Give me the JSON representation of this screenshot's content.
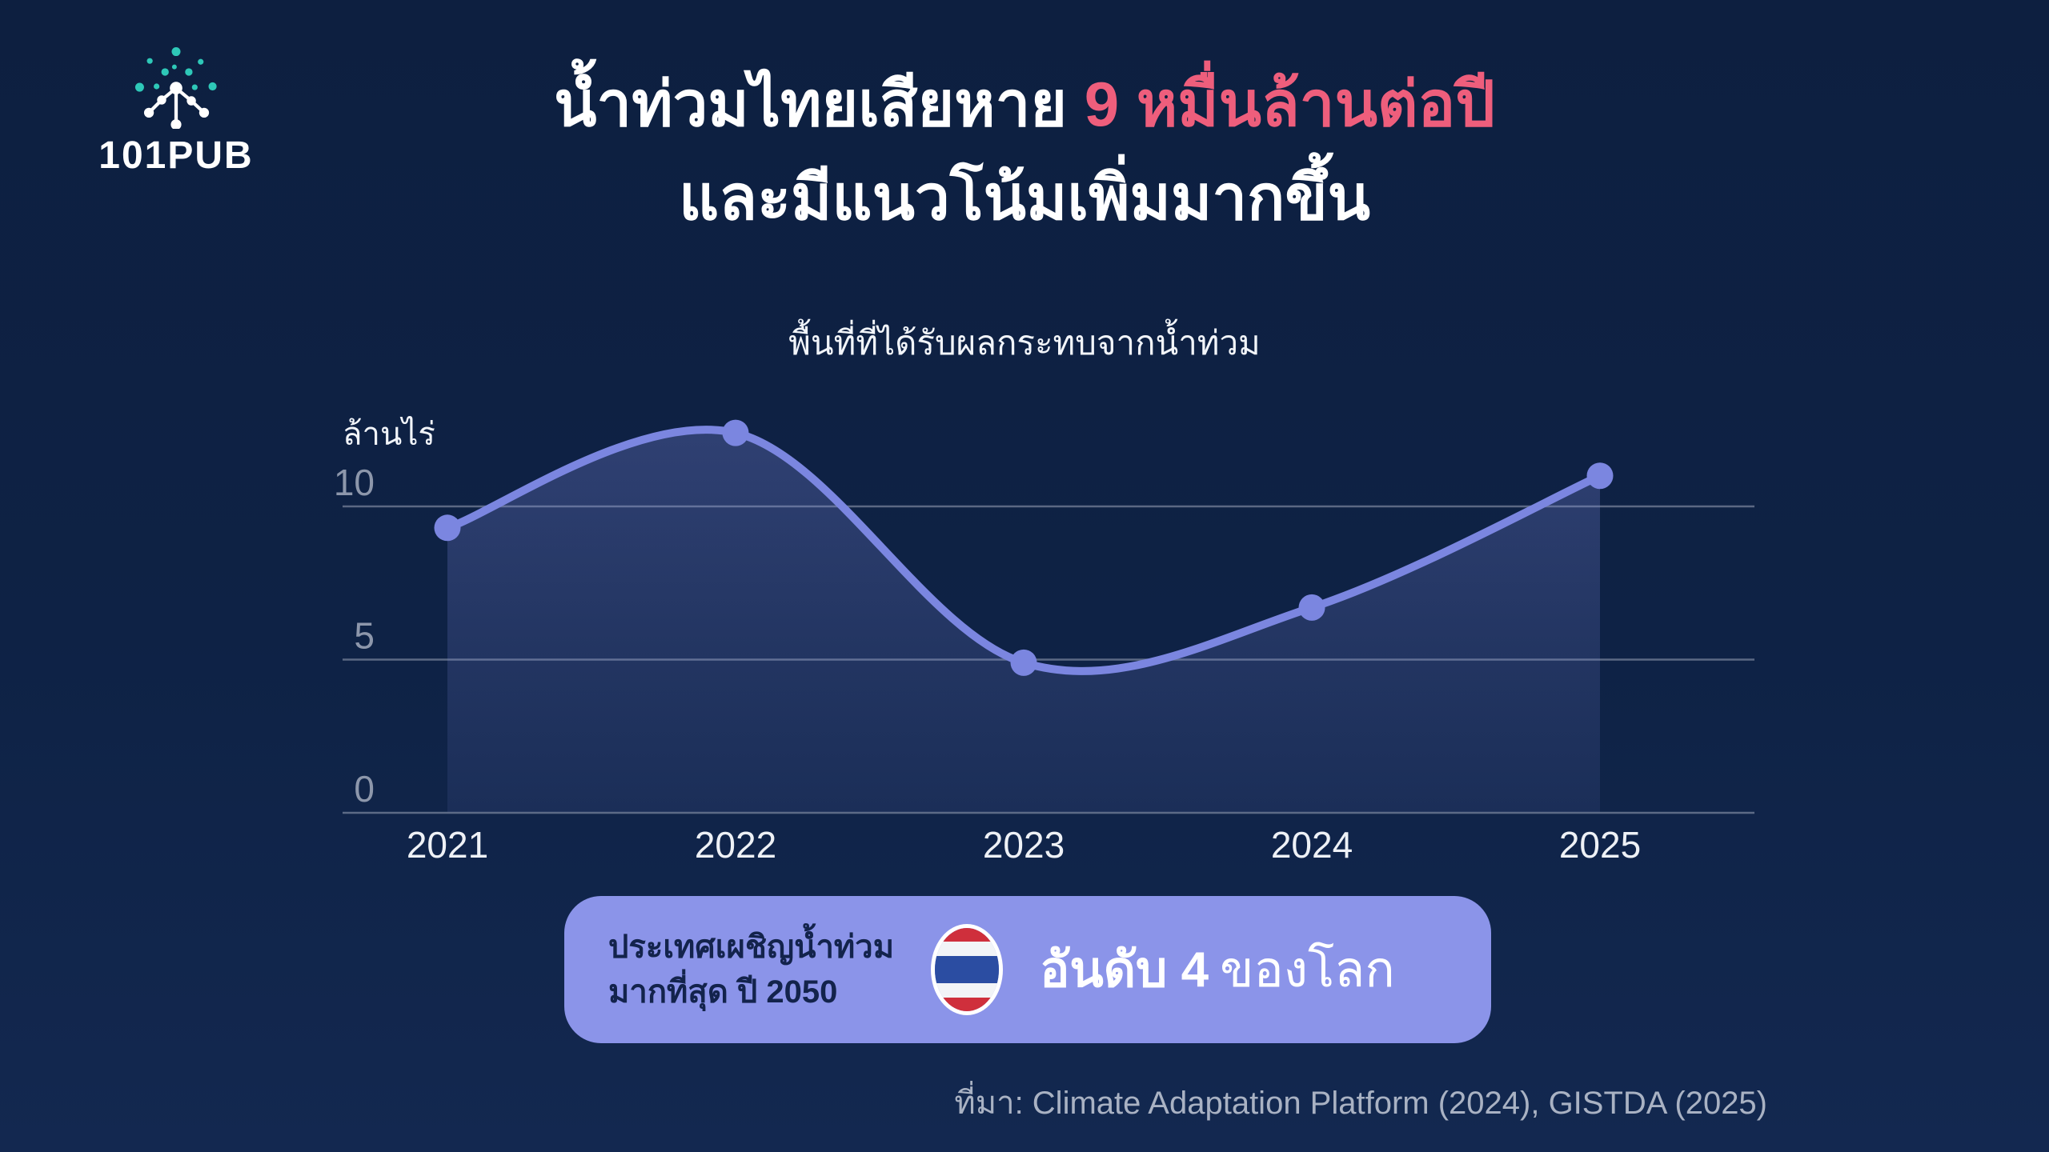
{
  "logo": {
    "brand": "101PUB",
    "icon": "network-dots-icon",
    "icon_colors": {
      "teal": "#2ec8b8",
      "white": "#ffffff"
    }
  },
  "title": {
    "line1_white": "น้ำท่วมไทยเสียหาย ",
    "line1_accent": "9 หมื่นล้านต่อปี",
    "line2": "และมีแนวโน้มเพิ่มมากขึ้น",
    "accent_color": "#ee5e7c"
  },
  "subtitle": "พื้นที่ที่ได้รับผลกระทบจากน้ำท่วม",
  "chart_data": {
    "type": "area",
    "title": "พื้นที่ที่ได้รับผลกระทบจากน้ำท่วม",
    "unit_label": "ล้านไร่",
    "categories": [
      "2021",
      "2022",
      "2023",
      "2024",
      "2025"
    ],
    "values": [
      9.3,
      12.4,
      4.9,
      6.7,
      11.0
    ],
    "yticks": [
      0,
      5,
      10
    ],
    "ylim": [
      0,
      13.5
    ],
    "grid": "horizontal",
    "legend": "none",
    "line_color": "#7b86e0",
    "point_color": "#7b86e0",
    "fill_color": "#7e89e0",
    "grid_color": "#9aa4b8",
    "tick_label_color": "#8d97ab",
    "x_label_color": "#eef1f6"
  },
  "badge": {
    "left_line1": "ประเทศเผชิญน้ำท่วม",
    "left_line2": "มากที่สุด ปี 2050",
    "flag": "thailand-flag-icon",
    "right_bold": "อันดับ 4",
    "right_regular": "ของโลก",
    "bg_color": "#8b94e9",
    "text_color": "#13234c"
  },
  "source": "ที่มา: Climate Adaptation Platform (2024), GISTDA (2025)"
}
